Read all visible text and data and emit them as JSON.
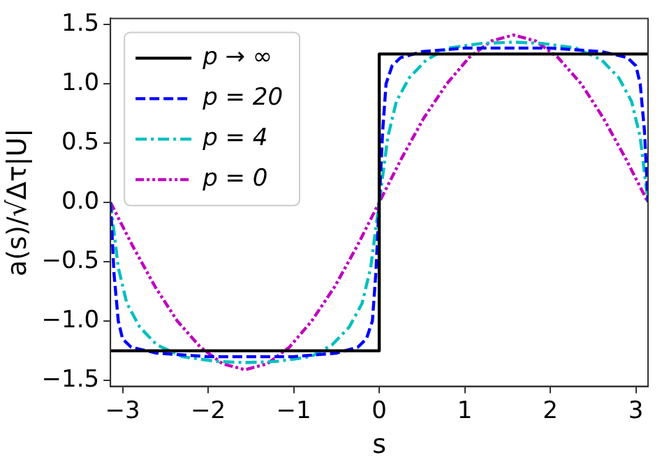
{
  "chart_data": {
    "type": "line",
    "xlabel": "s",
    "ylabel": "a(s)/√Δτ|U|",
    "xlim": [
      -3.1416,
      3.1416
    ],
    "ylim": [
      -1.55,
      1.55
    ],
    "xticks": [
      -3,
      -2,
      -1,
      0,
      1,
      2,
      3
    ],
    "yticks": [
      {
        "value": -1.5,
        "label": "−1.5"
      },
      {
        "value": -1,
        "label": "−1.0"
      },
      {
        "value": -0.5,
        "label": "−0.5"
      },
      {
        "value": 0,
        "label": "0.0"
      },
      {
        "value": 0.5,
        "label": "0.5"
      },
      {
        "value": 1,
        "label": "1.0"
      },
      {
        "value": 1.5,
        "label": "1.5"
      }
    ],
    "grid": false,
    "legend": "top left",
    "marker": "none",
    "series": [
      {
        "name": "p → ∞",
        "color": "#000000",
        "line_style": "solid",
        "x": [
          -3.1416,
          0,
          0,
          3.1416
        ],
        "values": [
          -1.25,
          -1.25,
          1.25,
          1.25
        ]
      },
      {
        "name": "p = 20",
        "color": "#0000ff",
        "line_style": "dashed",
        "x": [
          -3.1416,
          -3.1,
          -3.05,
          -3.0,
          -2.9,
          -2.6,
          -2.0,
          -1.57,
          -1.0,
          -0.5,
          -0.25,
          -0.15,
          -0.08,
          -0.04,
          0,
          0.04,
          0.08,
          0.15,
          0.25,
          0.5,
          1.0,
          1.57,
          2.0,
          2.6,
          2.9,
          3.0,
          3.05,
          3.1,
          3.1416
        ],
        "values": [
          0,
          -0.6,
          -1.0,
          -1.15,
          -1.22,
          -1.27,
          -1.3,
          -1.3,
          -1.3,
          -1.27,
          -1.22,
          -1.15,
          -1.0,
          -0.6,
          0,
          0.6,
          1.0,
          1.15,
          1.22,
          1.27,
          1.3,
          1.3,
          1.3,
          1.27,
          1.22,
          1.15,
          1.0,
          0.6,
          0
        ]
      },
      {
        "name": "p = 4",
        "color": "#00bfbf",
        "line_style": "dashdot",
        "x": [
          -3.1416,
          -3.05,
          -2.95,
          -2.8,
          -2.6,
          -2.3,
          -1.9,
          -1.57,
          -1.2,
          -0.8,
          -0.55,
          -0.35,
          -0.2,
          -0.1,
          0,
          0.1,
          0.2,
          0.35,
          0.55,
          0.8,
          1.2,
          1.57,
          1.9,
          2.3,
          2.6,
          2.8,
          2.95,
          3.05,
          3.1416
        ],
        "values": [
          0,
          -0.55,
          -0.85,
          -1.05,
          -1.2,
          -1.3,
          -1.34,
          -1.35,
          -1.34,
          -1.3,
          -1.2,
          -1.05,
          -0.85,
          -0.55,
          0,
          0.55,
          0.85,
          1.05,
          1.2,
          1.3,
          1.34,
          1.35,
          1.34,
          1.3,
          1.2,
          1.05,
          0.85,
          0.55,
          0
        ]
      },
      {
        "name": "p = 0",
        "color": "#bf00bf",
        "line_style": "dashdotdot",
        "x": [
          -3.1416,
          -2.88,
          -2.62,
          -2.36,
          -2.09,
          -1.83,
          -1.57,
          -1.31,
          -1.05,
          -0.79,
          -0.52,
          -0.26,
          0,
          0.26,
          0.52,
          0.79,
          1.05,
          1.31,
          1.57,
          1.83,
          2.09,
          2.36,
          2.62,
          2.88,
          3.1416
        ],
        "values": [
          0,
          -0.37,
          -0.71,
          -1.0,
          -1.22,
          -1.36,
          -1.41,
          -1.36,
          -1.22,
          -1.0,
          -0.71,
          -0.37,
          0,
          0.37,
          0.71,
          1.0,
          1.22,
          1.36,
          1.41,
          1.36,
          1.22,
          1.0,
          0.71,
          0.37,
          0
        ]
      }
    ]
  }
}
